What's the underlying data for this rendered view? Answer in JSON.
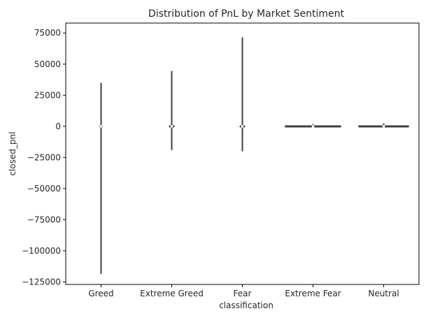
{
  "chart_data": {
    "type": "violin",
    "title": "Distribution of PnL by Market Sentiment",
    "xlabel": "classification",
    "ylabel": "closed_pnl",
    "categories": [
      "Greed",
      "Extreme Greed",
      "Fear",
      "Extreme Fear",
      "Neutral"
    ],
    "ylim": [
      -127000,
      83000
    ],
    "yticks": [
      75000,
      50000,
      25000,
      0,
      -25000,
      -50000,
      -75000,
      -100000,
      -125000
    ],
    "ytick_labels": [
      "75000",
      "50000",
      "25000",
      "0",
      "−25000",
      "−50000",
      "−75000",
      "−100000",
      "−125000"
    ],
    "series": [
      {
        "category": "Greed",
        "min": -118500,
        "max": 35000,
        "median": 0,
        "body_halfwidth_frac": 0.03
      },
      {
        "category": "Extreme Greed",
        "min": -19000,
        "max": 44500,
        "median": 0,
        "body_halfwidth_frac": 0.05
      },
      {
        "category": "Fear",
        "min": -20000,
        "max": 71500,
        "median": 0,
        "body_halfwidth_frac": 0.05
      },
      {
        "category": "Extreme Fear",
        "min": -300,
        "max": 1800,
        "median": 0,
        "body_halfwidth_frac": 0.5
      },
      {
        "category": "Neutral",
        "min": -1000,
        "max": 2500,
        "median": 0,
        "body_halfwidth_frac": 0.45
      }
    ],
    "grid": false,
    "colors": {
      "line": "#3f3f3f",
      "text": "#262626",
      "axes": "#000000"
    }
  }
}
